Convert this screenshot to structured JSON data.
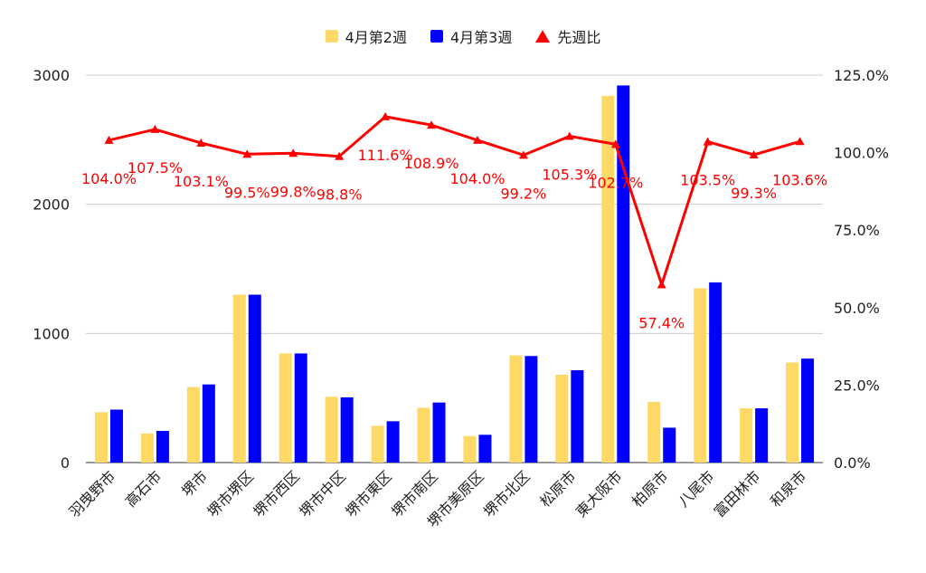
{
  "chart_data": {
    "type": "bar",
    "categories": [
      "羽曳野市",
      "高石市",
      "堺市",
      "堺市堺区",
      "堺市西区",
      "堺市中区",
      "堺市東区",
      "堺市南区",
      "堺市美原区",
      "堺市北区",
      "松原市",
      "東大阪市",
      "柏原市",
      "八尾市",
      "富田林市",
      "和泉市"
    ],
    "series": [
      {
        "name": "4月第2週",
        "color": "#ffd966",
        "values": [
          390,
          225,
          585,
          1300,
          845,
          510,
          285,
          425,
          205,
          830,
          680,
          2840,
          470,
          1350,
          420,
          775
        ]
      },
      {
        "name": "4月第3週",
        "color": "#0000ff",
        "values": [
          410,
          245,
          605,
          1300,
          845,
          505,
          320,
          465,
          215,
          825,
          715,
          2920,
          270,
          1395,
          420,
          805
        ]
      },
      {
        "name": "先週比",
        "type": "line",
        "axis": "right",
        "color": "#ff0000",
        "values": [
          104.0,
          107.5,
          103.1,
          99.5,
          99.8,
          98.8,
          111.6,
          108.9,
          104.0,
          99.2,
          105.3,
          102.7,
          57.4,
          103.5,
          99.3,
          103.6
        ],
        "labels": [
          "104.0%",
          "107.5%",
          "103.1%",
          "99.5%",
          "99.8%",
          "98.8%",
          "111.6%",
          "108.9%",
          "104.0%",
          "99.2%",
          "105.3%",
          "102.7%",
          "57.4%",
          "103.5%",
          "99.3%",
          "103.6%"
        ]
      }
    ],
    "left_axis": {
      "ylim": [
        0,
        3000
      ],
      "ticks": [
        "0",
        "1000",
        "2000",
        "3000"
      ]
    },
    "right_axis": {
      "ylim": [
        0,
        125
      ],
      "ticks": [
        "0.0%",
        "25.0%",
        "50.0%",
        "75.0%",
        "100.0%",
        "125.0%"
      ]
    },
    "legend_position": "top-center",
    "grid": true
  }
}
